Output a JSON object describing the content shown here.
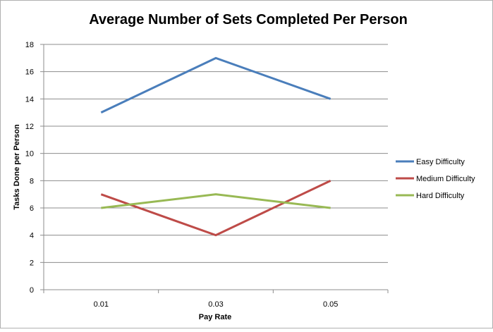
{
  "chart_data": {
    "type": "line",
    "title": "Average Number of Sets Completed Per Person",
    "xlabel": "Pay Rate",
    "ylabel": "Tasks Done per Person",
    "categories": [
      "0.01",
      "0.03",
      "0.05"
    ],
    "ylim": [
      0,
      18
    ],
    "yticks": [
      "0",
      "2",
      "4",
      "6",
      "8",
      "10",
      "12",
      "14",
      "16",
      "18"
    ],
    "grid": true,
    "legend_position": "right",
    "series": [
      {
        "name": "Easy Difficulty",
        "values": [
          13,
          17,
          14
        ],
        "color": "#4a7ebb"
      },
      {
        "name": "Medium Difficulty",
        "values": [
          7,
          4,
          8
        ],
        "color": "#be4b48"
      },
      {
        "name": "Hard Difficulty",
        "values": [
          6,
          7,
          6
        ],
        "color": "#98b954"
      }
    ]
  }
}
